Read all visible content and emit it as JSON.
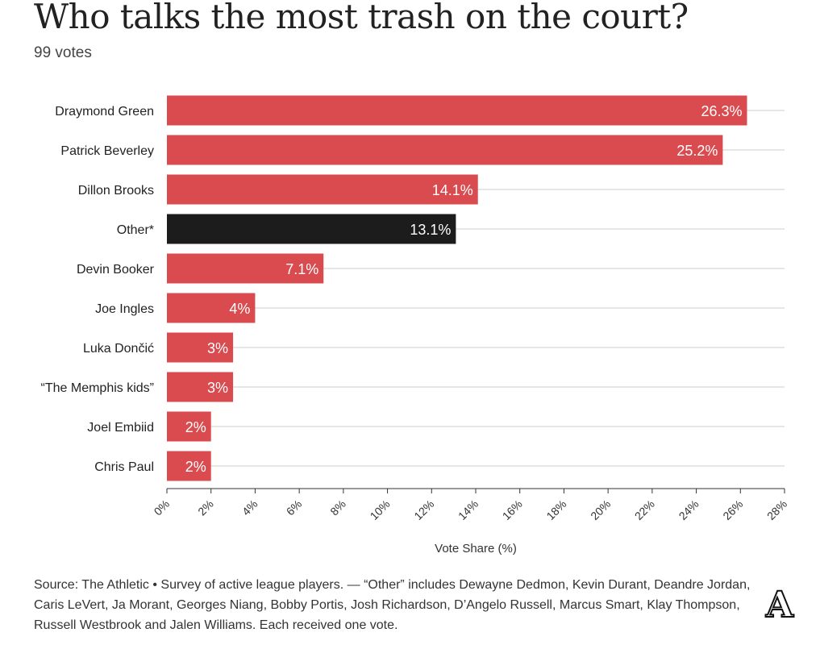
{
  "title": "Who talks the most trash on the court?",
  "subtitle": "99 votes",
  "source": "Source: The Athletic • Survey of active league players. — “Other” includes Dewayne Dedmon, Kevin Durant, Deandre Jordan, Caris LeVert, Ja Morant, Georges Niang, Bobby Portis, Josh Richardson, D’Angelo Russell, Marcus Smart, Klay Thompson, Russell Westbrook and Jalen Williams. Each received one vote.",
  "logo_text": "A",
  "colors": {
    "bar": "#d94b4f",
    "highlight": "#1c1c1c",
    "grid": "#e6e6e6"
  },
  "chart_data": {
    "type": "bar",
    "orientation": "horizontal",
    "categories": [
      "Draymond Green",
      "Patrick Beverley",
      "Dillon Brooks",
      "Other*",
      "Devin Booker",
      "Joe Ingles",
      "Luka Dončić",
      "“The Memphis kids”",
      "Joel Embiid",
      "Chris Paul"
    ],
    "values": [
      26.3,
      25.2,
      14.1,
      13.1,
      7.1,
      4,
      3,
      3,
      2,
      2
    ],
    "labels": [
      "26.3%",
      "25.2%",
      "14.1%",
      "13.1%",
      "7.1%",
      "4%",
      "3%",
      "3%",
      "2%",
      "2%"
    ],
    "highlight_index": 3,
    "xlabel": "Vote Share (%)",
    "xlim": [
      0,
      28
    ],
    "xticks": [
      0,
      2,
      4,
      6,
      8,
      10,
      12,
      14,
      16,
      18,
      20,
      22,
      24,
      26,
      28
    ],
    "xtick_labels": [
      "0%",
      "2%",
      "4%",
      "6%",
      "8%",
      "10%",
      "12%",
      "14%",
      "16%",
      "18%",
      "20%",
      "22%",
      "24%",
      "26%",
      "28%"
    ],
    "grid": true
  }
}
